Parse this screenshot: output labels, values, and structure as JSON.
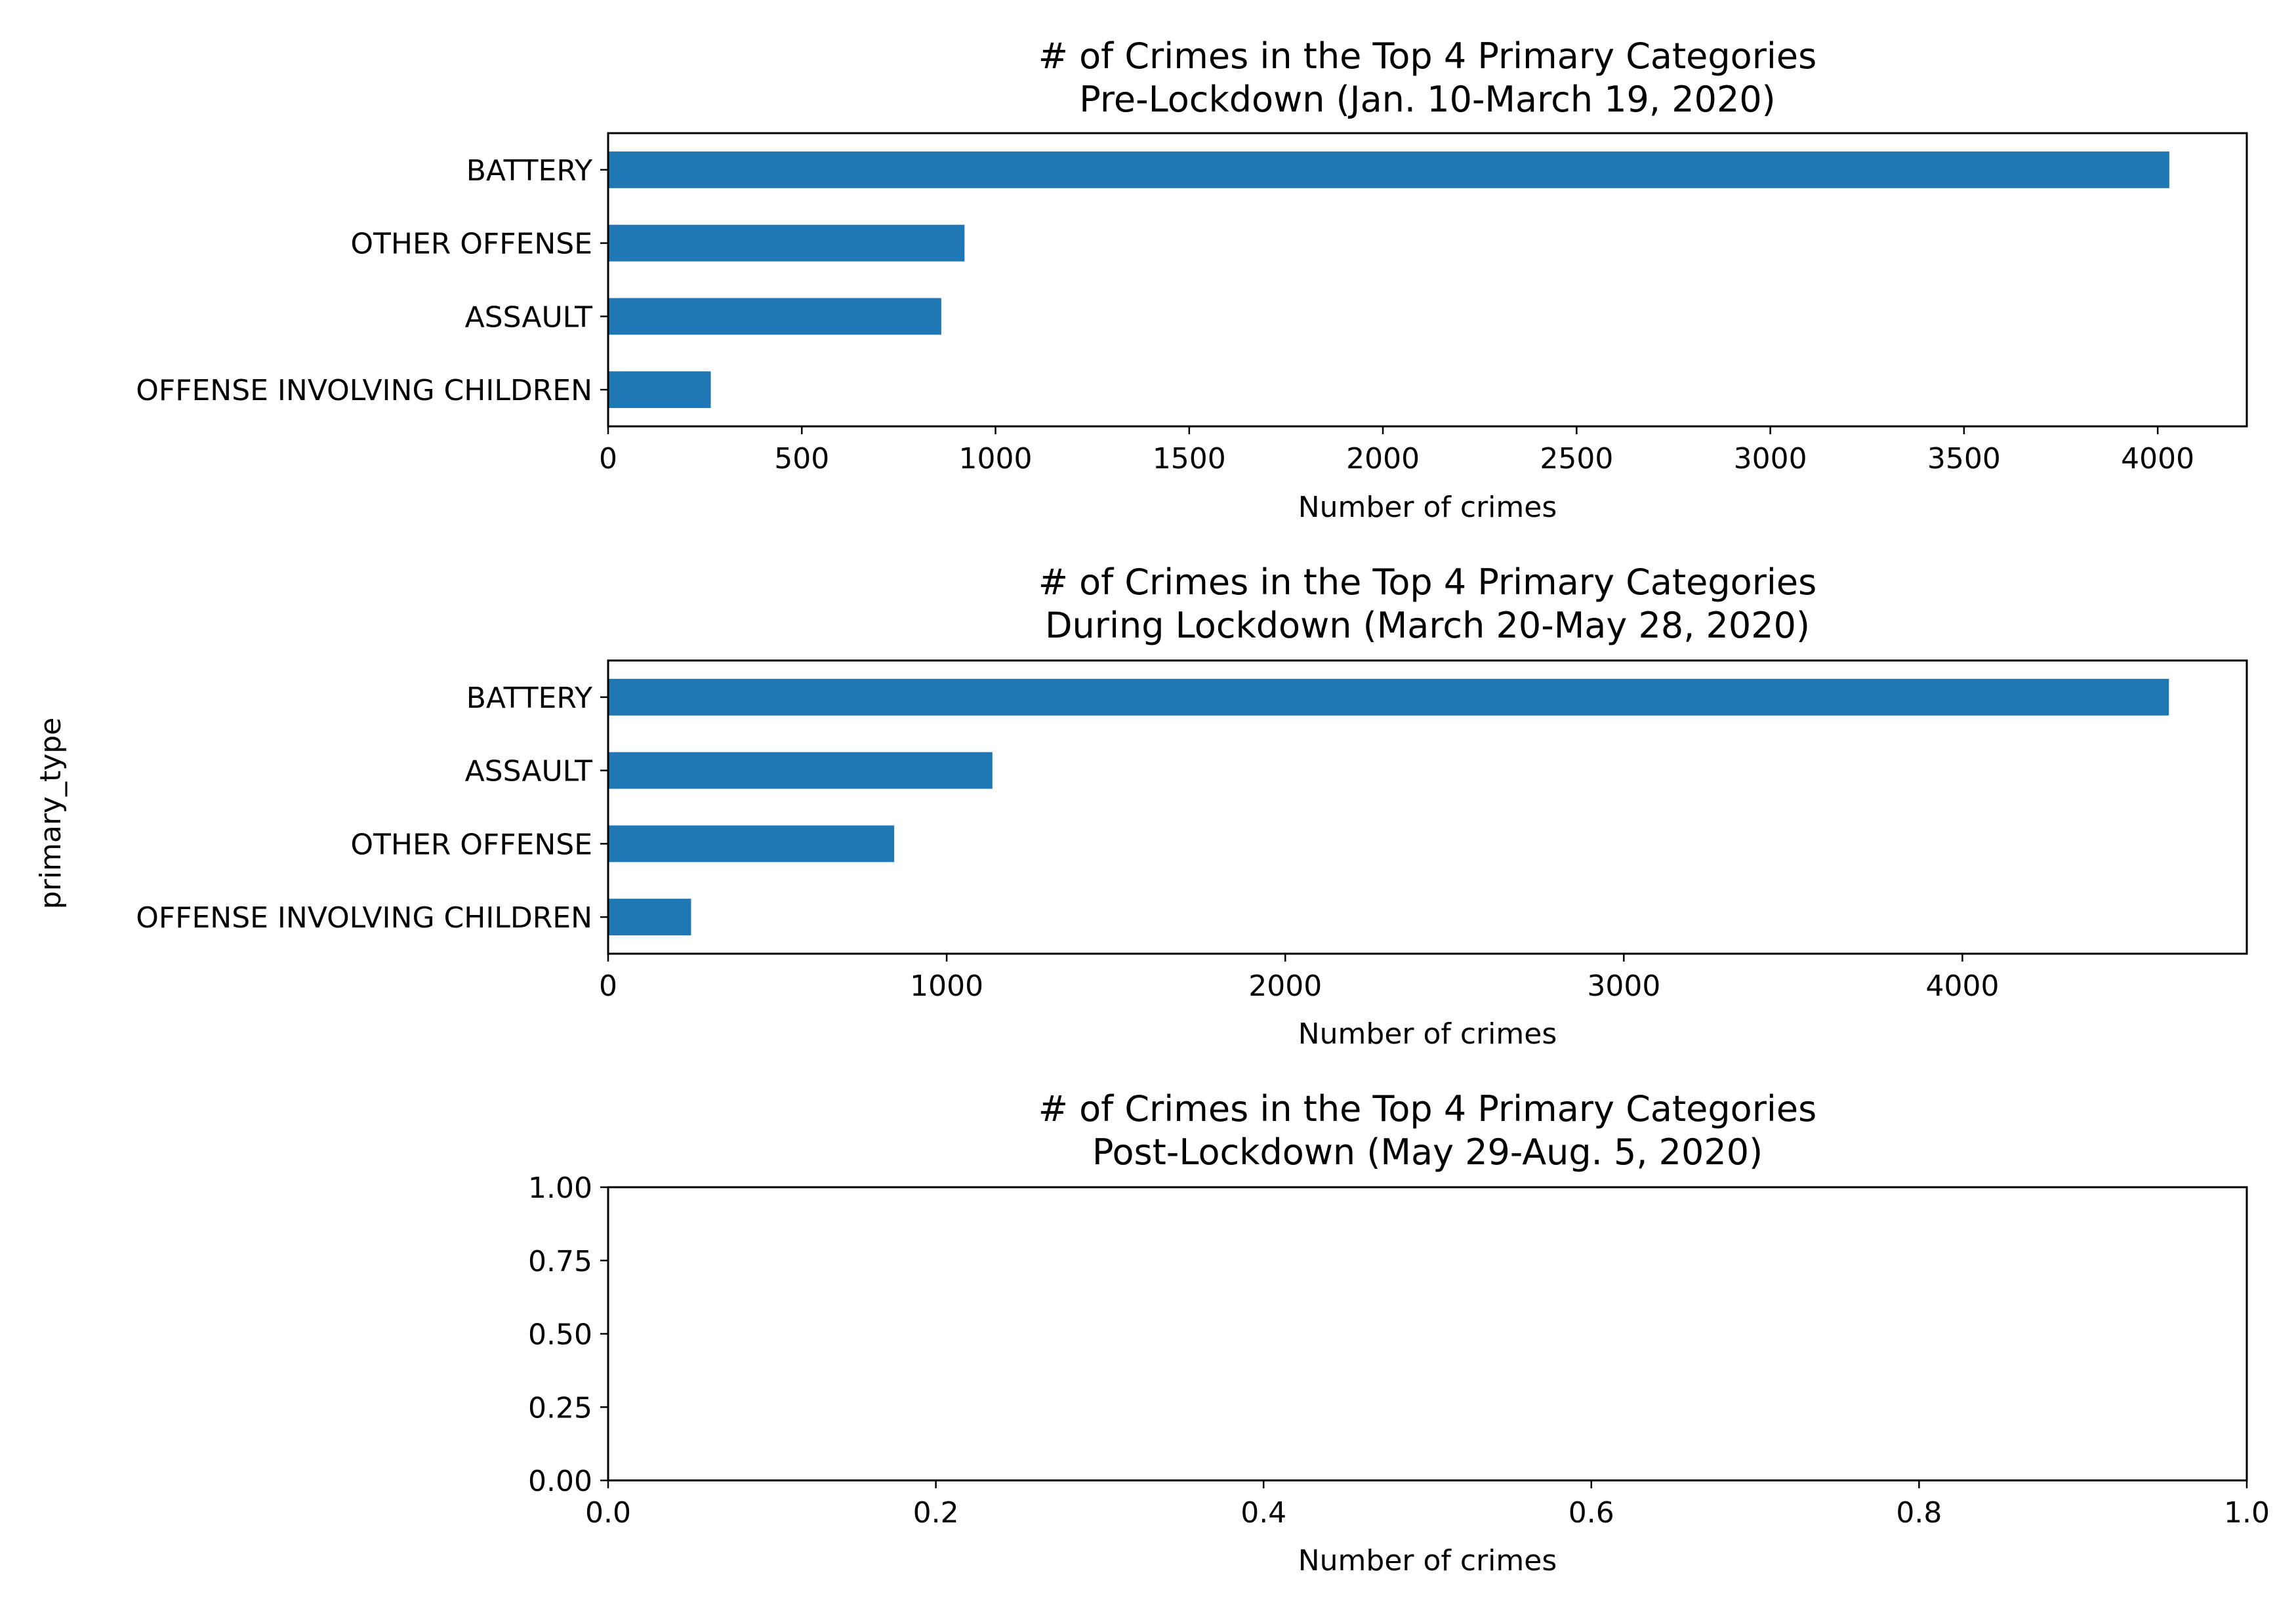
{
  "figure": {
    "shared_ylabel": "primary_type",
    "bar_color": "#1f77b4"
  },
  "chart_data": [
    {
      "type": "bar",
      "orientation": "horizontal",
      "title": "# of Crimes in the Top 4 Primary Categories",
      "subtitle": "Pre-Lockdown (Jan. 10-March 19, 2020)",
      "xlabel": "Number of crimes",
      "categories": [
        "BATTERY",
        "OTHER OFFENSE",
        "ASSAULT",
        "OFFENSE INVOLVING CHILDREN"
      ],
      "values": [
        4030,
        920,
        860,
        265
      ],
      "xlim": [
        0,
        4230
      ],
      "xticks": [
        0,
        500,
        1000,
        1500,
        2000,
        2500,
        3000,
        3500,
        4000
      ],
      "xtick_labels": [
        "0",
        "500",
        "1000",
        "1500",
        "2000",
        "2500",
        "3000",
        "3500",
        "4000"
      ],
      "grid": false
    },
    {
      "type": "bar",
      "orientation": "horizontal",
      "title": "# of Crimes in the Top 4 Primary Categories",
      "subtitle": "During Lockdown (March 20-May 28, 2020)",
      "xlabel": "Number of crimes",
      "categories": [
        "BATTERY",
        "ASSAULT",
        "OTHER OFFENSE",
        "OFFENSE INVOLVING CHILDREN"
      ],
      "values": [
        4610,
        1135,
        845,
        245
      ],
      "xlim": [
        0,
        4840
      ],
      "xticks": [
        0,
        1000,
        2000,
        3000,
        4000
      ],
      "xtick_labels": [
        "0",
        "1000",
        "2000",
        "3000",
        "4000"
      ],
      "grid": false
    },
    {
      "type": "bar",
      "orientation": "horizontal",
      "title": "# of Crimes in the Top 4 Primary Categories",
      "subtitle": "Post-Lockdown (May 29-Aug. 5, 2020)",
      "xlabel": "Number of crimes",
      "categories": [],
      "values": [],
      "xlim": [
        0,
        1
      ],
      "ylim": [
        0,
        1
      ],
      "xticks": [
        0,
        0.2,
        0.4,
        0.6,
        0.8,
        1.0
      ],
      "xtick_labels": [
        "0.0",
        "0.2",
        "0.4",
        "0.6",
        "0.8",
        "1.0"
      ],
      "yticks": [
        0,
        0.25,
        0.5,
        0.75,
        1.0
      ],
      "ytick_labels": [
        "0.00",
        "0.25",
        "0.50",
        "0.75",
        "1.00"
      ],
      "grid": false
    }
  ]
}
